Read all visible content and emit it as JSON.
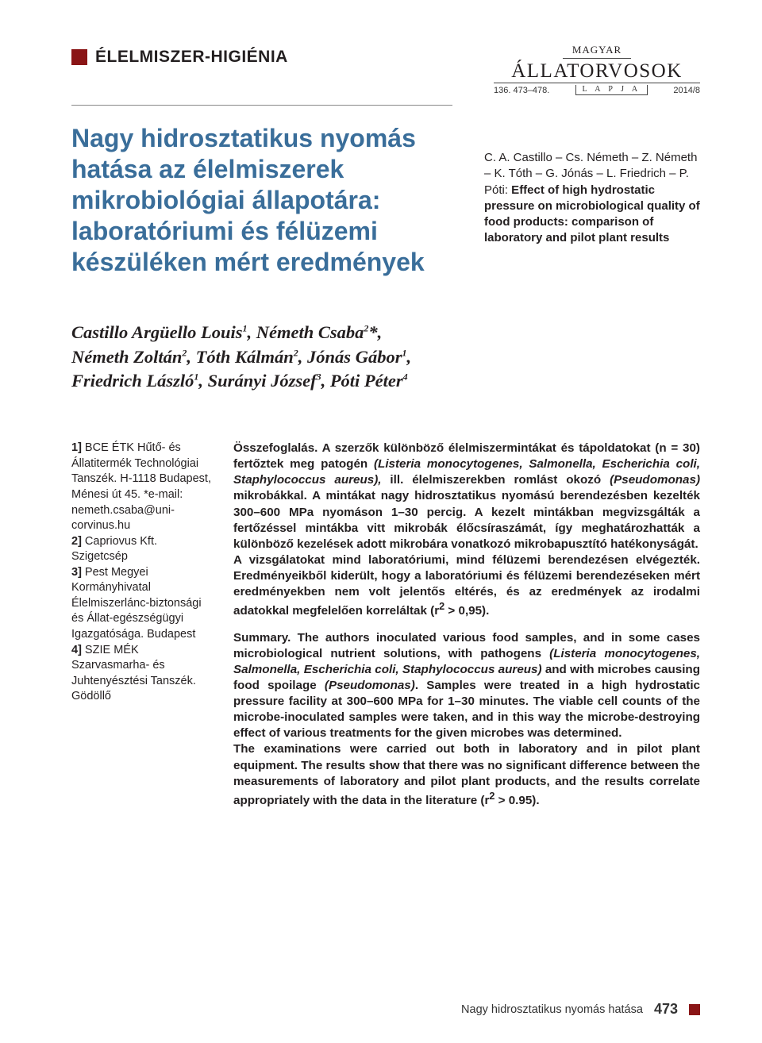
{
  "section_label": "ÉLELMISZER-HIGIÉNIA",
  "journal": {
    "magyar": "MAGYAR",
    "name": "ÁLLATORVOSOK",
    "issue": "136. 473–478.",
    "lapja": "L A P J A",
    "year": "2014/8"
  },
  "article_title": "Nagy hidrosztatikus nyomás hatása az élelmiszerek mikrobiológiai állapotára: laboratóriumi és félüzemi készüléken mért eredmények",
  "citation": {
    "names": "C. A. Castillo – Cs. Németh – Z. Németh – K. Tóth – G. Jónás – L. Friedrich – P. Póti:",
    "title_en": " Effect of high hydrostatic pressure on microbiological quality of food products: comparison of laboratory and pilot plant results"
  },
  "authors_html": "Castillo Argüello Louis<sup>1</sup>, Németh Csaba<sup>2</sup>*,<br>Németh Zoltán<sup>2</sup>, Tóth Kálmán<sup>2</sup>, Jónás Gábor<sup>1</sup>,<br>Friedrich László<sup>1</sup>, Surányi József<sup>3</sup>, Póti Péter<sup>4</sup>",
  "affiliations": [
    {
      "n": "1]",
      "text": " BCE ÉTK Hűtő- és Állatitermék Technológiai Tanszék. H-1118 Budapest, Ménesi út 45. *e-mail: nemeth.csaba@uni-corvinus.hu"
    },
    {
      "n": "2]",
      "text": " Capriovus Kft. Szigetcsép"
    },
    {
      "n": "3]",
      "text": " Pest Megyei Kormányhivatal Élelmiszerlánc-biztonsági és Állat-egészségügyi Igazgatósága. Budapest"
    },
    {
      "n": "4]",
      "text": " SZIE MÉK Szarvasmarha- és Juhtenyésztési Tanszék. Gödöllő"
    }
  ],
  "abstract_hu": {
    "lead": "Összefoglalás.",
    "p1": " A szerzők különböző élelmiszermintákat és tápoldatokat (n = 30) fertőztek meg patogén ",
    "p1_it1": "(Listeria monocytogenes, Salmonella, Escherichia coli, Staphylococcus aureus),",
    "p1_mid": " ill. élelmiszerekben romlást okozó ",
    "p1_it2": "(Pseudomonas)",
    "p1_end": " mikrobákkal. A mintákat nagy hidrosztatikus nyomású berendezésben kezelték 300–600 MPa nyomáson 1–30 percig. A kezelt mintákban megvizsgálták a fertőzéssel mintákba vitt mikrobák élőcsíraszámát, így meghatározhatták a különböző kezelések adott mikrobára vonatkozó mikrobapusztító hatékonyságát.",
    "p2": "A vizsgálatokat mind laboratóriumi, mind félüzemi berendezésen elvégezték. Eredményeikből kiderült, hogy a laboratóriumi és félüzemi berendezéseken mért eredményekben nem volt jelentős eltérés, és az eredmények az irodalmi adatokkal megfelelően korreláltak (r",
    "p2_sup": "2",
    "p2_end": " > 0,95)."
  },
  "abstract_en": {
    "lead": "Summary.",
    "p1a": " The authors inoculated various food samples, and in some cases microbiological nutrient solutions, with pathogens ",
    "p1_it1": "(Listeria monocytogenes, Salmonella, Escherichia coli, Staphylococcus aureus)",
    "p1b": " and with microbes causing food spoilage ",
    "p1_it2": "(Pseudomonas)",
    "p1c": ". Samples were treated in a high hydrostatic pressure facility at 300–600 MPa for 1–30 minutes. The viable cell counts of the microbe-inoculated samples were taken, and in this way the microbe-destroying effect of various treatments for the given microbes was determined.",
    "p2a": "The examinations were carried out both in laboratory and in pilot plant equipment. The results show that there was no significant difference between the measurements of laboratory and pilot plant products, and the results correlate appropriately with the data in the literature (r",
    "p2_sup": "2",
    "p2b": " > 0.95)."
  },
  "footer": {
    "running": "Nagy hidrosztatikus nyomás hatása",
    "page": "473"
  },
  "colors": {
    "brand_red": "#8a1516",
    "title_blue": "#3a6e9a",
    "text": "#231f20",
    "background": "#ffffff"
  }
}
